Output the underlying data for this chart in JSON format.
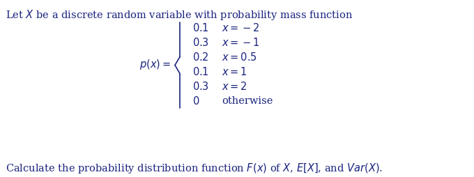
{
  "line1": "Let $X$ be a discrete random variable with probability mass function",
  "pmf_label": "$p(x) =$",
  "cases": [
    [
      "0.1",
      "x = -2"
    ],
    [
      "0.3",
      "x = -1"
    ],
    [
      "0.2",
      "x = 0.5"
    ],
    [
      "0.1",
      "x = 1"
    ],
    [
      "0.3",
      "x = 2"
    ],
    [
      "0",
      "otherwise"
    ]
  ],
  "line2": "Calculate the probability distribution function $F(x)$ of $X$, $E[X]$, and $Var(X)$.",
  "text_color": "#1a237e",
  "bg_color": "#ffffff",
  "fontsize_main": 10.5,
  "fontsize_cases": 10.5
}
